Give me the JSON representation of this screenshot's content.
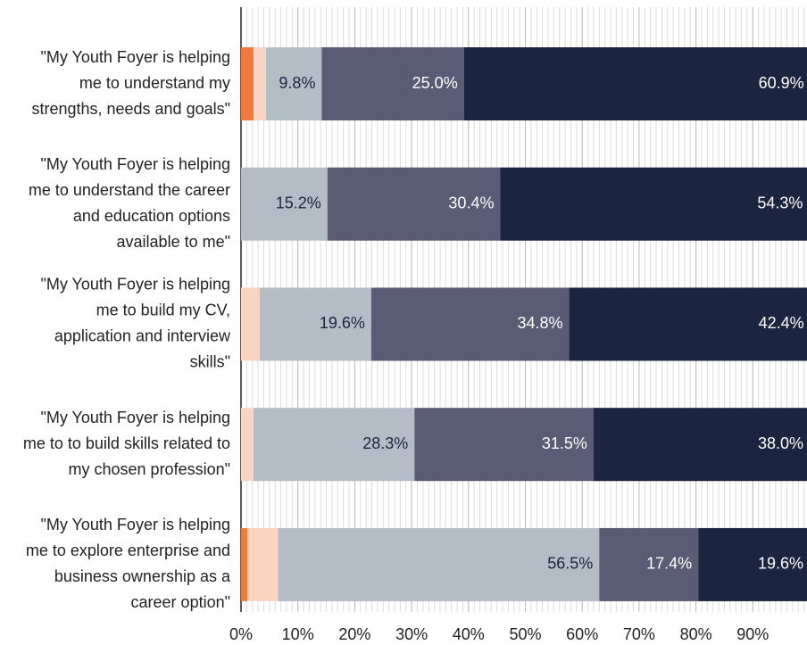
{
  "chart_data": {
    "type": "stacked_bar_horizontal",
    "categories": [
      [
        "\"My Youth Foyer is helping",
        "me to understand my",
        "strengths, needs and goals\""
      ],
      [
        "\"My Youth Foyer is helping",
        "me to understand the career",
        "and education options",
        "available to me\""
      ],
      [
        "\"My Youth Foyer is helping",
        "me to build my CV,",
        "application and interview",
        "skills\""
      ],
      [
        "\"My Youth Foyer is helping",
        "me to to build skills related to",
        "my chosen profession\""
      ],
      [
        "\"My Youth Foyer is helping",
        "me to explore enterprise and",
        "business ownership as a",
        "career option\""
      ]
    ],
    "series": [
      {
        "color": "#ee7b3a",
        "values": [
          2.2,
          0,
          0,
          0,
          1.1
        ]
      },
      {
        "color": "#f9d5c1",
        "values": [
          2.2,
          0,
          3.3,
          2.2,
          5.4
        ]
      },
      {
        "color": "#b4bcc5",
        "label_color": "#1b2540",
        "values": [
          9.8,
          15.2,
          19.6,
          28.3,
          56.5
        ],
        "value_labels": [
          "9.8%",
          "15.2%",
          "19.6%",
          "28.3%",
          "56.5%"
        ]
      },
      {
        "color": "#5a5b74",
        "label_color": "#ffffff",
        "values": [
          25.0,
          30.4,
          34.8,
          31.5,
          17.4
        ],
        "value_labels": [
          "25.0%",
          "30.4%",
          "34.8%",
          "31.5%",
          "17.4%"
        ]
      },
      {
        "color": "#1b2540",
        "label_color": "#ffffff",
        "values": [
          60.9,
          54.3,
          42.4,
          38.0,
          19.6
        ],
        "value_labels": [
          "60.9%",
          "54.3%",
          "42.4%",
          "38.0%",
          "19.6%"
        ]
      }
    ],
    "xlim": [
      0,
      100
    ],
    "xticks": [
      {
        "value": 0,
        "label": "0%"
      },
      {
        "value": 10,
        "label": "10%"
      },
      {
        "value": 20,
        "label": "20%"
      },
      {
        "value": 30,
        "label": "30%"
      },
      {
        "value": 40,
        "label": "40%"
      },
      {
        "value": 50,
        "label": "50%"
      },
      {
        "value": 60,
        "label": "60%"
      },
      {
        "value": 70,
        "label": "70%"
      },
      {
        "value": 80,
        "label": "80%"
      },
      {
        "value": 90,
        "label": "90%"
      }
    ],
    "grid": true,
    "minor_grid": true
  }
}
